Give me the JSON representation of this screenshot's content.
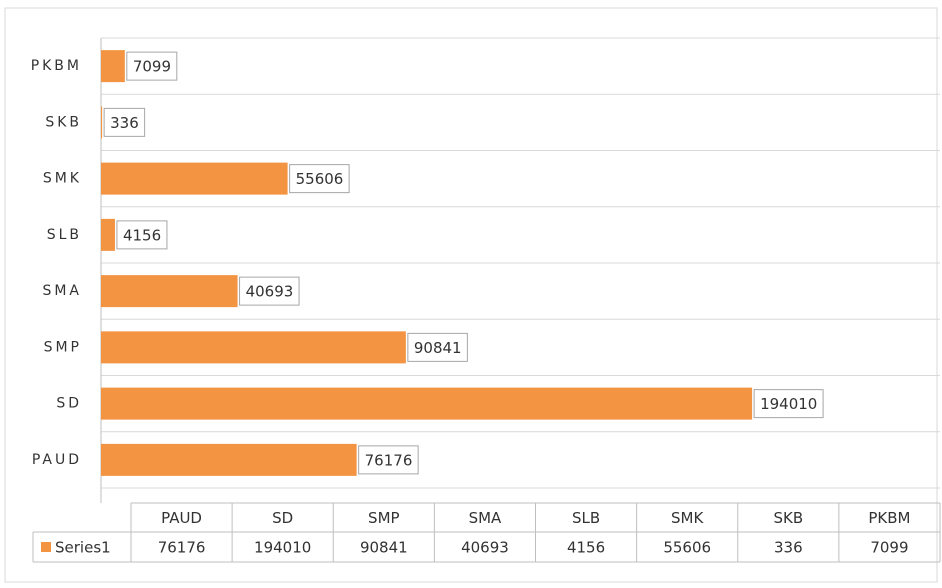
{
  "chart_data": {
    "type": "bar",
    "orientation": "horizontal",
    "categories": [
      "PAUD",
      "SD",
      "SMP",
      "SMA",
      "SLB",
      "SMK",
      "SKB",
      "PKBM"
    ],
    "series": [
      {
        "name": "Series1",
        "color": "#f39443",
        "values": [
          76176,
          194010,
          90841,
          40693,
          4156,
          55606,
          336,
          7099
        ]
      }
    ],
    "xlim": [
      0,
      250000
    ],
    "grid": true
  }
}
